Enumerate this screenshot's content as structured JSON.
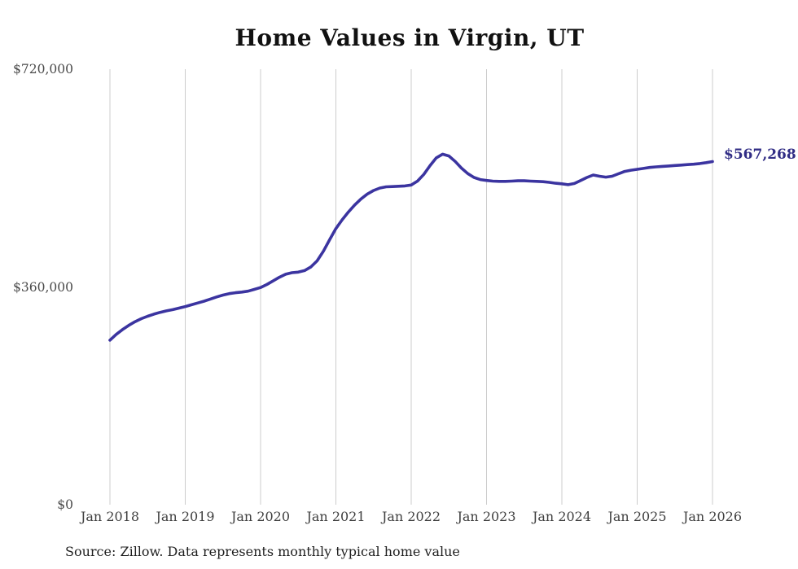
{
  "chart_data": {
    "type": "line",
    "title": "Home Values in Virgin, UT",
    "frequency": "monthly",
    "x_start": "Jan 2018",
    "x_end": "Jan 2026",
    "xtick_labels": [
      "Jan 2018",
      "Jan 2019",
      "Jan 2020",
      "Jan 2021",
      "Jan 2022",
      "Jan 2023",
      "Jan 2024",
      "Jan 2025",
      "Jan 2026"
    ],
    "yticks": [
      {
        "label": "$0",
        "value": 0
      },
      {
        "label": "$360,000",
        "value": 360000
      },
      {
        "label": "$720,000",
        "value": 720000
      }
    ],
    "ylim": [
      0,
      720000
    ],
    "grid": "vertical-only",
    "legend": "none",
    "end_label": "$567,268",
    "last_value": 567268,
    "colors": {
      "line": "#3b34a0",
      "end_label": "#312d85",
      "gridline": "#cccccc",
      "tick_text": "#3f3f3f",
      "title_text": "#111111"
    },
    "series": [
      {
        "name": "Typical home value",
        "color": "#3b34a0",
        "values": [
          272000,
          281500,
          289500,
          296500,
          302500,
          307500,
          311500,
          315000,
          318000,
          320500,
          322500,
          325000,
          327500,
          330500,
          333500,
          336500,
          340000,
          343500,
          346500,
          349000,
          350500,
          351500,
          353000,
          356000,
          359000,
          364000,
          370000,
          376000,
          381000,
          383500,
          384500,
          387000,
          393000,
          403000,
          419000,
          438000,
          456500,
          471000,
          484000,
          495500,
          505500,
          513500,
          519500,
          523500,
          525500,
          526000,
          526500,
          527000,
          528500,
          535000,
          546000,
          560500,
          573500,
          579500,
          576500,
          567500,
          556500,
          547500,
          541000,
          537500,
          536000,
          535000,
          534500,
          534500,
          535000,
          535500,
          535500,
          535000,
          534500,
          534000,
          533000,
          531500,
          530500,
          529000,
          531000,
          536000,
          541000,
          545000,
          543000,
          541500,
          543000,
          547000,
          551000,
          553000,
          554500,
          556000,
          557500,
          558500,
          559300,
          560000,
          560800,
          561500,
          562300,
          563000,
          564000,
          565500,
          567268
        ]
      }
    ]
  },
  "footer": {
    "source": "Source: Zillow. Data represents monthly typical home value"
  }
}
